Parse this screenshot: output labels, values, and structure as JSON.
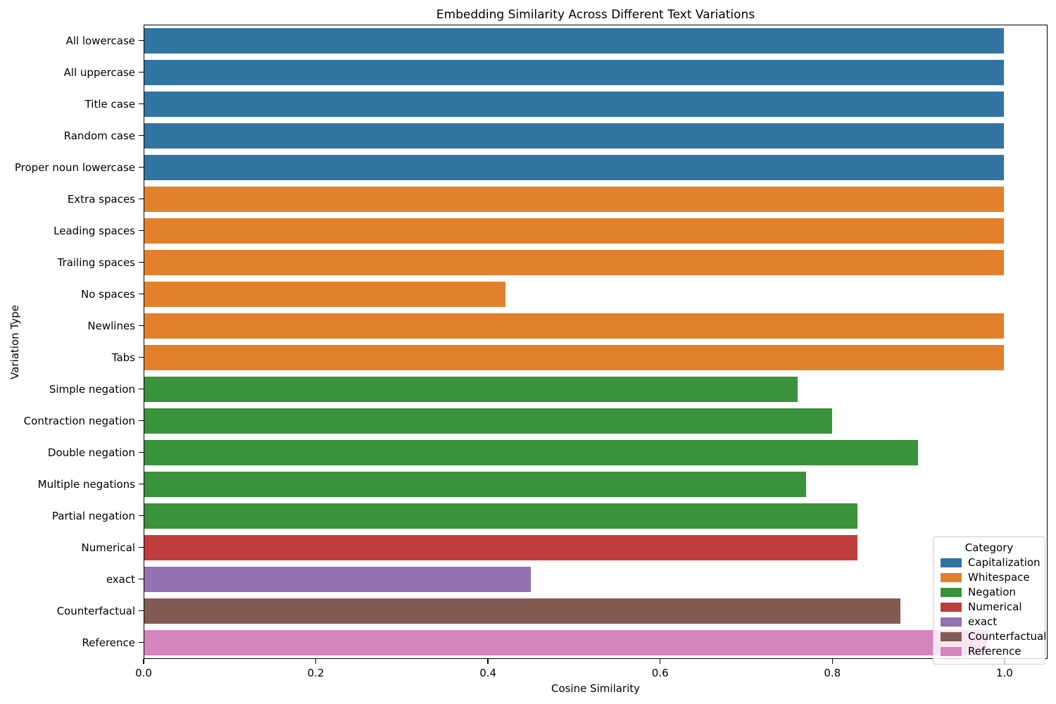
{
  "chart_data": {
    "type": "bar",
    "orientation": "horizontal",
    "title": "Embedding Similarity Across Different Text Variations",
    "xlabel": "Cosine Similarity",
    "ylabel": "Variation Type",
    "xlim": [
      0,
      1.05
    ],
    "xticks": [
      {
        "value": 0.0,
        "label": "0.0"
      },
      {
        "value": 0.2,
        "label": "0.2"
      },
      {
        "value": 0.4,
        "label": "0.4"
      },
      {
        "value": 0.6,
        "label": "0.6"
      },
      {
        "value": 0.8,
        "label": "0.8"
      },
      {
        "value": 1.0,
        "label": "1.0"
      }
    ],
    "grid": false,
    "categories": [
      "All lowercase",
      "All uppercase",
      "Title case",
      "Random case",
      "Proper noun lowercase",
      "Extra spaces",
      "Leading spaces",
      "Trailing spaces",
      "No spaces",
      "Newlines",
      "Tabs",
      "Simple negation",
      "Contraction negation",
      "Double negation",
      "Multiple negations",
      "Partial negation",
      "Numerical",
      "exact",
      "Counterfactual",
      "Reference"
    ],
    "values": [
      1.0,
      1.0,
      1.0,
      1.0,
      1.0,
      1.0,
      1.0,
      1.0,
      0.42,
      1.0,
      1.0,
      0.76,
      0.8,
      0.9,
      0.77,
      0.83,
      0.83,
      0.45,
      0.88,
      0.98
    ],
    "bar_groups": [
      "Capitalization",
      "Capitalization",
      "Capitalization",
      "Capitalization",
      "Capitalization",
      "Whitespace",
      "Whitespace",
      "Whitespace",
      "Whitespace",
      "Whitespace",
      "Whitespace",
      "Negation",
      "Negation",
      "Negation",
      "Negation",
      "Negation",
      "Numerical",
      "exact",
      "Counterfactual",
      "Reference"
    ],
    "legend": {
      "title": "Category",
      "position": "lower right",
      "entries": [
        {
          "label": "Capitalization",
          "color": "#3274a1"
        },
        {
          "label": "Whitespace",
          "color": "#e1812c"
        },
        {
          "label": "Negation",
          "color": "#3a923a"
        },
        {
          "label": "Numerical",
          "color": "#c03d3e"
        },
        {
          "label": "exact",
          "color": "#9372b2"
        },
        {
          "label": "Counterfactual",
          "color": "#845b53"
        },
        {
          "label": "Reference",
          "color": "#d684bd"
        }
      ]
    }
  }
}
